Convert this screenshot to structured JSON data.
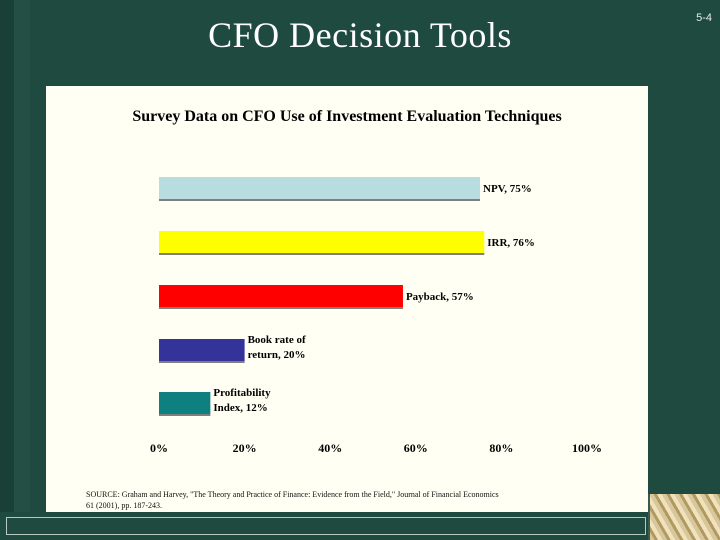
{
  "slide": {
    "title": "CFO Decision Tools",
    "number": "5-4",
    "source": "SOURCE: Graham and Harvey, \"The Theory and Practice of Finance: Evidence from the Field,\" Journal of Financial Economics 61 (2001), pp. 187-243."
  },
  "colors": {
    "background": "#1f4a40",
    "panel": "#fffff4",
    "series": [
      "#b7dde0",
      "#ffff00",
      "#ff0000",
      "#333399",
      "#0f8080"
    ]
  },
  "chart_data": {
    "type": "bar",
    "orientation": "horizontal",
    "title": "Survey Data on CFO Use of Investment Evaluation Techniques",
    "categories": [
      [
        "NPV, 75%"
      ],
      [
        "IRR, 76%"
      ],
      [
        "Payback, 57%"
      ],
      [
        "Book rate of",
        "return, 20%"
      ],
      [
        "Profitability",
        "Index, 12%"
      ]
    ],
    "values": [
      75,
      76,
      57,
      20,
      12
    ],
    "xlim": [
      0,
      100
    ],
    "x_ticks": [
      "0%",
      "20%",
      "40%",
      "60%",
      "80%",
      "100%"
    ],
    "grid": false,
    "legend": "none"
  }
}
